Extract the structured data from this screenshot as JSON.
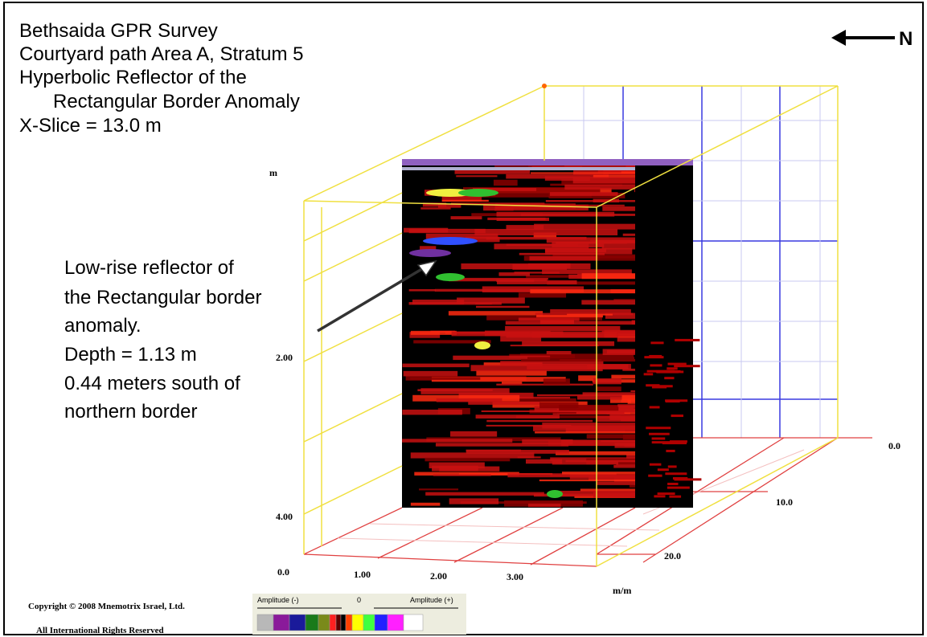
{
  "header": {
    "lines": [
      "Bethsaida GPR Survey",
      "Courtyard path Area A, Stratum 5",
      "Hyperbolic Reflector of the",
      "Rectangular Border Anomaly",
      "X-Slice = 13.0 m"
    ]
  },
  "north_label": "N",
  "annotation": {
    "lines": [
      "Low-rise reflector of",
      "the Rectangular border",
      "anomaly.",
      "Depth = 1.13 m",
      "0.44 meters south of",
      "northern border"
    ]
  },
  "axes": {
    "depth_unit": "m",
    "depth_ticks": [
      "2.00",
      "4.00"
    ],
    "x_ticks": [
      "0.0",
      "1.00",
      "2.00",
      "3.00"
    ],
    "y_ticks": [
      "0.0",
      "10.0",
      "20.0"
    ],
    "y_unit": "m/m"
  },
  "colorbar": {
    "left_label": "Amplitude (-)",
    "center_label": "0",
    "right_label": "Amplitude (+)"
  },
  "footer": {
    "copyright": "Copyright © 2008 Mnemotrix Israel, Ltd.",
    "rights": "All International Rights Reserved"
  }
}
